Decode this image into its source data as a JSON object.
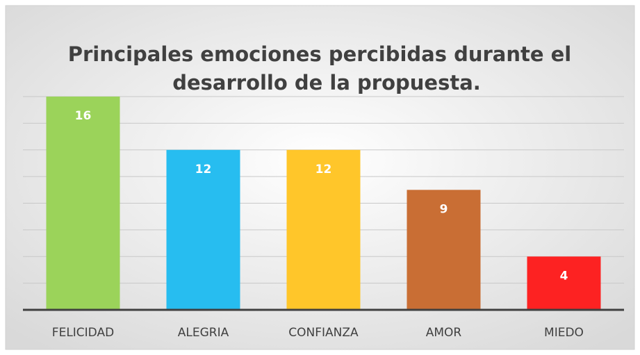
{
  "chart_data": {
    "type": "bar",
    "title": [
      "Principales emociones percibidas durante el",
      "desarrollo de la propuesta."
    ],
    "categories": [
      "FELICIDAD",
      "ALEGRIA",
      "CONFIANZA",
      "AMOR",
      "MIEDO"
    ],
    "values": [
      16,
      12,
      12,
      9,
      4
    ],
    "colors": [
      "#9bd35a",
      "#27bdf0",
      "#ffc62a",
      "#c96e34",
      "#fd2222"
    ],
    "ylim": [
      0,
      16
    ],
    "yticks": [
      0,
      2,
      4,
      6,
      8,
      10,
      12,
      14,
      16
    ],
    "grid": true
  }
}
